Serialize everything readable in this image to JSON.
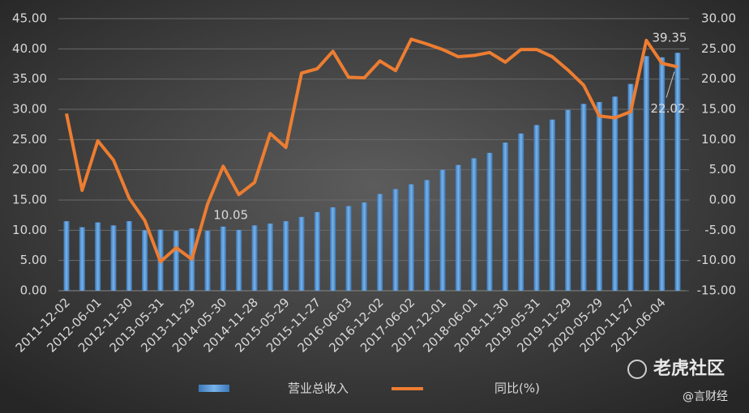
{
  "chart_data": {
    "type": "bar-line",
    "categories": [
      "2011-12-02",
      null,
      "2012-06-01",
      null,
      "2012-11-30",
      null,
      "2013-05-31",
      null,
      "2013-11-29",
      null,
      "2014-05-30",
      null,
      "2014-11-28",
      null,
      "2015-05-29",
      null,
      "2015-11-27",
      null,
      "2016-06-03",
      null,
      "2016-12-02",
      null,
      "2017-06-02",
      null,
      "2017-12-01",
      null,
      "2018-06-01",
      null,
      "2018-11-30",
      null,
      "2019-05-31",
      null,
      "2019-11-29",
      null,
      "2020-05-29",
      null,
      "2020-11-27",
      null,
      "2021-06-04",
      null
    ],
    "series": [
      {
        "name": "营业总收入",
        "color": "#5b9bd5",
        "type": "bar",
        "values": [
          11.5,
          10.5,
          11.3,
          10.8,
          11.5,
          10.0,
          10.1,
          9.9,
          10.3,
          9.9,
          10.6,
          10.05,
          10.8,
          11.1,
          11.5,
          12.2,
          13.0,
          13.8,
          14.0,
          14.6,
          16.0,
          16.8,
          17.6,
          18.3,
          20.0,
          20.8,
          21.9,
          22.8,
          24.5,
          26.0,
          27.4,
          28.3,
          29.9,
          30.9,
          31.2,
          32.1,
          34.2,
          38.8,
          38.6,
          39.35
        ],
        "value_labels": [
          null,
          null,
          null,
          null,
          null,
          null,
          null,
          null,
          null,
          null,
          null,
          "10.05",
          null,
          null,
          null,
          null,
          null,
          null,
          null,
          null,
          null,
          null,
          null,
          null,
          null,
          null,
          null,
          null,
          null,
          null,
          null,
          null,
          null,
          null,
          null,
          null,
          null,
          null,
          null,
          "39.35"
        ]
      },
      {
        "name": "同比(%)",
        "color": "#ed7d31",
        "type": "line",
        "axis": "y2",
        "values": [
          14.3,
          1.6,
          9.8,
          6.6,
          0.3,
          -3.4,
          -10.2,
          -7.9,
          -9.8,
          -0.7,
          5.6,
          0.9,
          2.9,
          11.0,
          8.7,
          21.0,
          21.7,
          24.6,
          20.3,
          20.2,
          23.0,
          21.4,
          26.6,
          25.8,
          24.9,
          23.7,
          23.9,
          24.4,
          22.8,
          24.9,
          24.9,
          23.7,
          21.5,
          19.0,
          13.9,
          13.6,
          14.6,
          26.4,
          22.6,
          22.02
        ],
        "value_labels": [
          null,
          null,
          null,
          null,
          null,
          null,
          null,
          null,
          null,
          null,
          null,
          null,
          null,
          null,
          null,
          null,
          null,
          null,
          null,
          null,
          null,
          null,
          null,
          null,
          null,
          null,
          null,
          null,
          null,
          null,
          null,
          null,
          null,
          null,
          null,
          null,
          null,
          null,
          null,
          "22.02"
        ]
      }
    ],
    "ylim": [
      0,
      45
    ],
    "yticks": [
      {
        "value": 0,
        "label": "0.00"
      },
      {
        "value": 5,
        "label": "5.00"
      },
      {
        "value": 10,
        "label": "10.00"
      },
      {
        "value": 15,
        "label": "15.00"
      },
      {
        "value": 20,
        "label": "20.00"
      },
      {
        "value": 25,
        "label": "25.00"
      },
      {
        "value": 30,
        "label": "30.00"
      },
      {
        "value": 35,
        "label": "35.00"
      },
      {
        "value": 40,
        "label": "40.00"
      },
      {
        "value": 45,
        "label": "45.00"
      }
    ],
    "y2lim": [
      -15,
      30
    ],
    "y2ticks": [
      {
        "value": -15,
        "label": "-15.00"
      },
      {
        "value": -10,
        "label": "-10.00"
      },
      {
        "value": -5,
        "label": "-5.00"
      },
      {
        "value": 0,
        "label": "0.00"
      },
      {
        "value": 5,
        "label": "5.00"
      },
      {
        "value": 10,
        "label": "10.00"
      },
      {
        "value": 15,
        "label": "15.00"
      },
      {
        "value": 20,
        "label": "20.00"
      },
      {
        "value": 25,
        "label": "25.00"
      },
      {
        "value": 30,
        "label": "30.00"
      }
    ],
    "grid": true,
    "legend": "bottom"
  },
  "watermark": {
    "brand": "老虎社区",
    "author": "@言财经"
  }
}
